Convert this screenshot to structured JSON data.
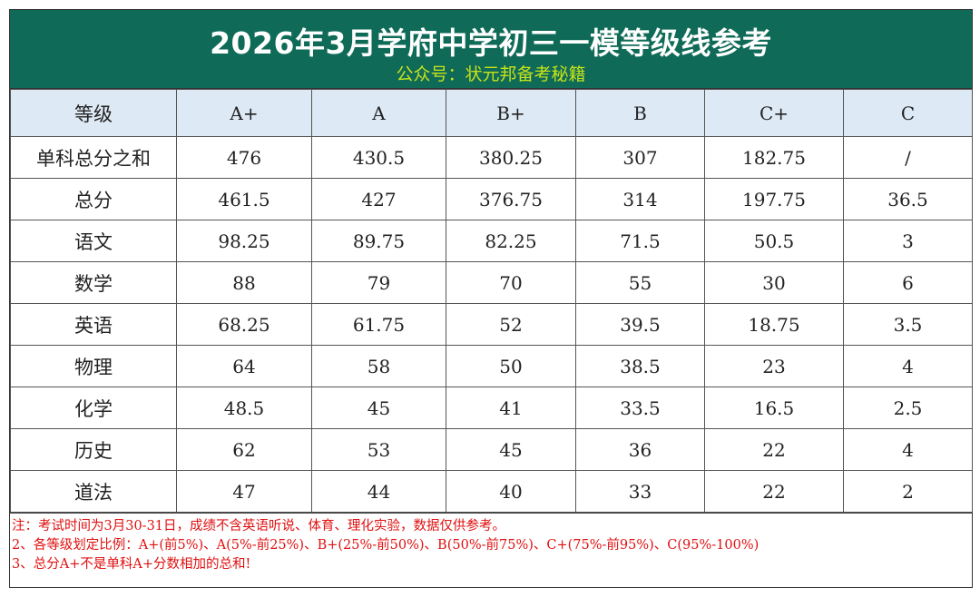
{
  "title": "2026年3月学府中学初三一模等级线参考",
  "subtitle": "公众号：状元邦备考秘籍",
  "colors": {
    "header_bg": "#0f6b58",
    "title": "#ffffff",
    "subtitle": "#c6e21a",
    "header_row_bg": "#dde9f5",
    "notes": "#e01010"
  },
  "table": {
    "headers": [
      "等级",
      "A+",
      "A",
      "B+",
      "B",
      "C+",
      "C"
    ],
    "rows": [
      [
        "单科总分之和",
        "476",
        "430.5",
        "380.25",
        "307",
        "182.75",
        "/"
      ],
      [
        "总分",
        "461.5",
        "427",
        "376.75",
        "314",
        "197.75",
        "36.5"
      ],
      [
        "语文",
        "98.25",
        "89.75",
        "82.25",
        "71.5",
        "50.5",
        "3"
      ],
      [
        "数学",
        "88",
        "79",
        "70",
        "55",
        "30",
        "6"
      ],
      [
        "英语",
        "68.25",
        "61.75",
        "52",
        "39.5",
        "18.75",
        "3.5"
      ],
      [
        "物理",
        "64",
        "58",
        "50",
        "38.5",
        "23",
        "4"
      ],
      [
        "化学",
        "48.5",
        "45",
        "41",
        "33.5",
        "16.5",
        "2.5"
      ],
      [
        "历史",
        "62",
        "53",
        "45",
        "36",
        "22",
        "4"
      ],
      [
        "道法",
        "47",
        "44",
        "40",
        "33",
        "22",
        "2"
      ]
    ]
  },
  "notes": [
    "注：考试时间为3月30-31日，成绩不含英语听说、体育、理化实验，数据仅供参考。",
    "2、各等级划定比例：A+(前5%)、A(5%-前25%)、B+(25%-前50%)、B(50%-前75%)、C+(75%-前95%)、C(95%-100%)",
    "3、总分A+不是单科A+分数相加的总和!"
  ]
}
